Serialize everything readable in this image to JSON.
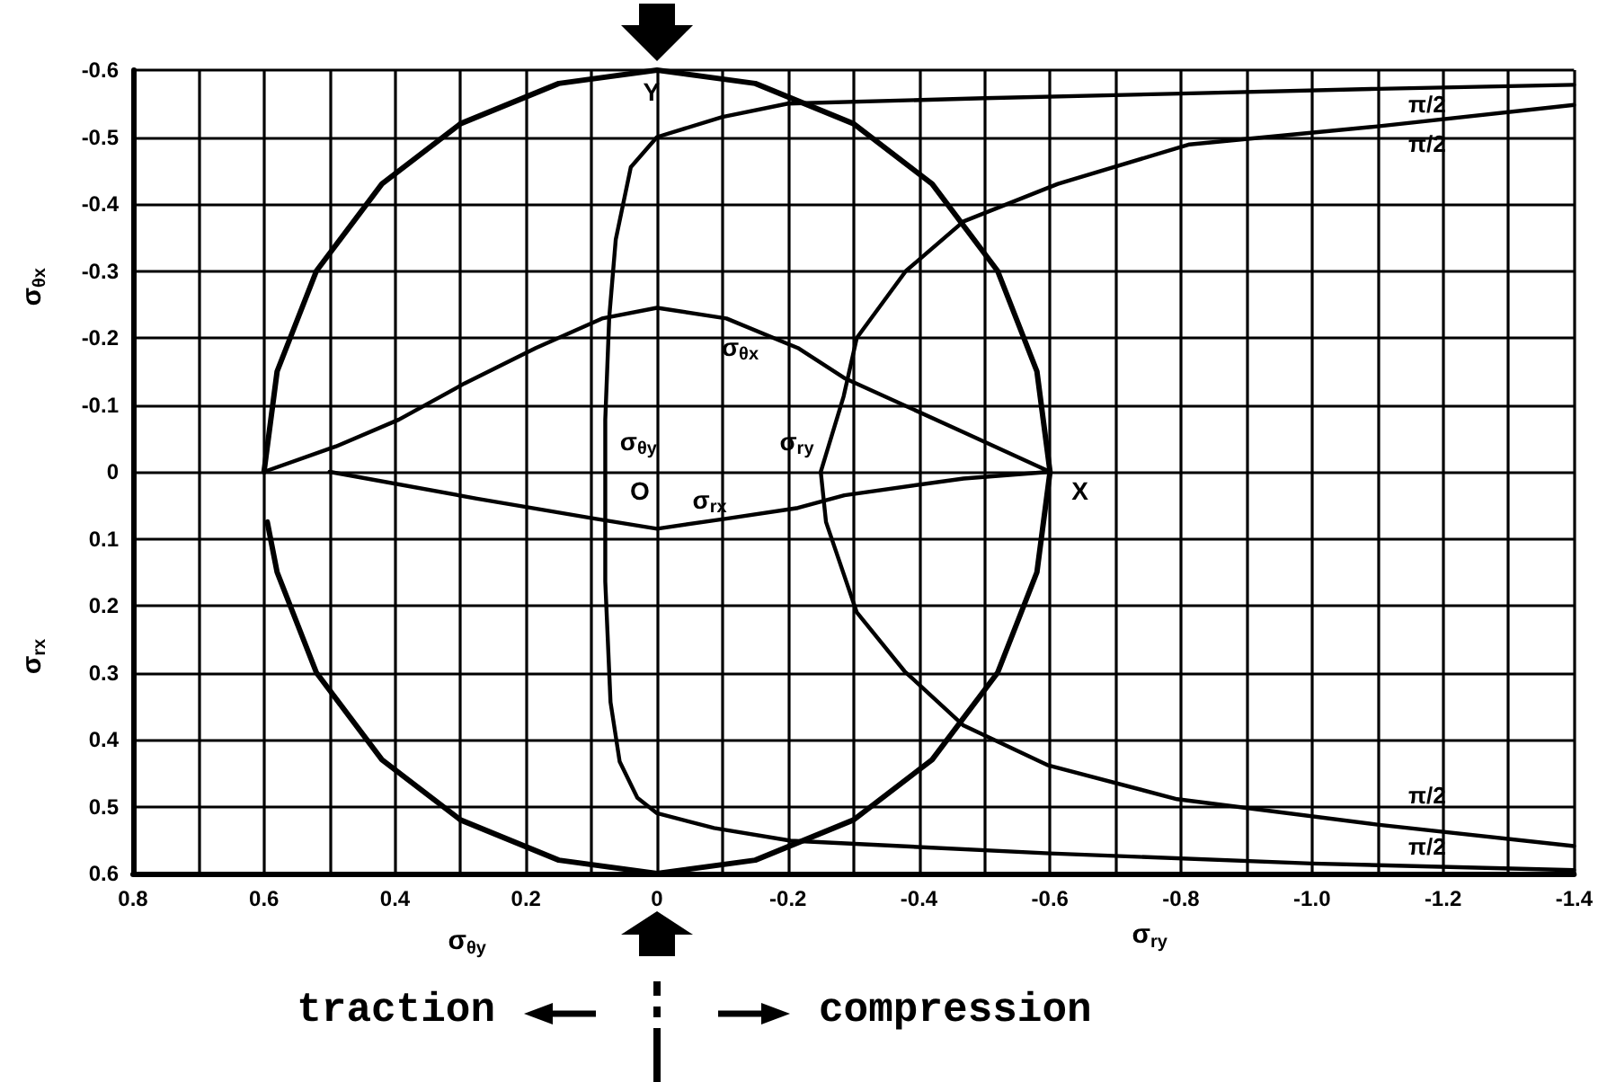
{
  "chart_data": {
    "type": "line",
    "xlabel": "σ$_{θy}$",
    "ylabel": "σ$_{θx}$",
    "marker": "none",
    "grid": true,
    "xlim": [
      0.8,
      -1.4
    ],
    "ylim": [
      0.6,
      -0.6
    ],
    "xticks": [
      0.8,
      {
        "value": 0.7,
        "label": null
      },
      0.6,
      {
        "value": 0.5,
        "label": null
      },
      0.4,
      {
        "value": 0.3,
        "label": null
      },
      0.2,
      {
        "value": 0.1,
        "label": null
      },
      0,
      {
        "value": -0.1,
        "label": null
      },
      -0.2,
      {
        "value": -0.3,
        "label": null
      },
      -0.4,
      {
        "value": -0.5,
        "label": null
      },
      -0.6,
      {
        "value": -0.7,
        "label": null
      },
      -0.8,
      {
        "value": -0.9,
        "label": null
      },
      {
        "value": -1.0,
        "label": "-1.0"
      },
      {
        "value": -1.1,
        "label": null
      },
      -1.2,
      {
        "value": -1.3,
        "label": null
      },
      -1.4
    ],
    "yticks": [
      0.6,
      0.5,
      0.4,
      0.3,
      0.2,
      0.1,
      0,
      -0.1,
      -0.2,
      -0.3,
      -0.4,
      -0.5,
      -0.6
    ],
    "series": [
      {
        "color": "#000000",
        "x": [
          0.6,
          0.58,
          0.52,
          0.42,
          0.3,
          0.15,
          0,
          -0.15,
          -0.3,
          -0.42,
          -0.52,
          -0.58,
          -0.6,
          -0.58,
          -0.52,
          -0.42,
          -0.3,
          -0.15,
          0,
          0.15,
          0.3,
          0.42,
          0.52,
          0.58,
          0.595
        ],
        "values": [
          0,
          -0.15,
          -0.3,
          -0.43,
          -0.52,
          -0.58,
          -0.6,
          -0.58,
          -0.52,
          -0.43,
          -0.3,
          -0.15,
          0,
          0.15,
          0.3,
          0.43,
          0.52,
          0.58,
          0.6,
          0.58,
          0.52,
          0.43,
          0.3,
          0.15,
          0.075
        ]
      },
      {
        "color": "#000000",
        "x": [
          -1.4,
          -1.1,
          -0.8,
          -0.5,
          -0.2,
          -0.1,
          0,
          0.04,
          0.063,
          0.073,
          0.079,
          0.079,
          0.079,
          0.071,
          0.057,
          0.03,
          0,
          -0.087,
          -0.204,
          -0.6,
          -1.0,
          -1.4
        ],
        "values": [
          -0.578,
          -0.572,
          -0.565,
          -0.558,
          -0.55,
          -0.53,
          -0.5,
          -0.455,
          -0.347,
          -0.23,
          -0.078,
          0,
          0.164,
          0.344,
          0.433,
          0.487,
          0.51,
          0.532,
          0.551,
          0.57,
          0.585,
          0.595
        ]
      },
      {
        "color": "#000000",
        "x": [
          -1.4,
          -1.1,
          -0.813,
          -0.612,
          -0.468,
          -0.38,
          -0.305,
          -0.285,
          -0.25,
          -0.258,
          -0.305,
          -0.378,
          -0.468,
          -0.596,
          -0.794,
          -1.1,
          -1.4
        ],
        "values": [
          -0.548,
          -0.516,
          -0.489,
          -0.43,
          -0.374,
          -0.3,
          -0.2,
          -0.113,
          0,
          0.075,
          0.21,
          0.298,
          0.379,
          0.438,
          0.489,
          0.527,
          0.559
        ]
      },
      {
        "color": "#000000",
        "x": [
          0.6,
          0.49,
          0.394,
          0.294,
          0.185,
          0.084,
          0,
          -0.106,
          -0.215,
          -0.286,
          -0.468,
          -0.6,
          -0.468,
          -0.286,
          -0.215,
          -0.106,
          0,
          0.095,
          0.275,
          0.5
        ],
        "values": [
          0,
          -0.038,
          -0.078,
          -0.132,
          -0.185,
          -0.229,
          -0.245,
          -0.229,
          -0.185,
          -0.14,
          -0.059,
          0,
          0.01,
          0.035,
          0.054,
          0.07,
          0.085,
          0.07,
          0.04,
          0
        ]
      }
    ],
    "annotations": [
      "traction",
      "compression",
      "σ$_{ry}$",
      "σ$_{rx}$",
      "Y",
      "O",
      "X",
      "σ$_{θx}$",
      "σ$_{θy}$",
      "σ$_{ry}$",
      "σ$_{rx}$",
      "π/2",
      "π/2",
      "π/2",
      "π/2"
    ]
  }
}
